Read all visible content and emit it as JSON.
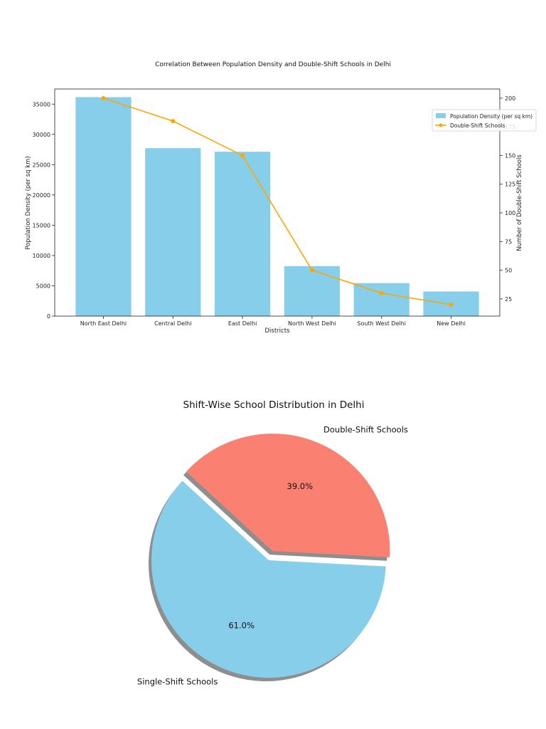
{
  "chart_data": [
    {
      "type": "bar",
      "title": "Correlation Between Population Density and Double-Shift Schools in Delhi",
      "xlabel": "Districts",
      "ylabel": "Population Density (per sq km)",
      "y2label": "Number of Double-Shift Schools",
      "categories": [
        "North East Delhi",
        "Central Delhi",
        "East Delhi",
        "North West Delhi",
        "South West Delhi",
        "New Delhi"
      ],
      "series": [
        {
          "name": "Population Density (per sq km)",
          "type": "bar",
          "axis": "left",
          "color": "#87CEEB",
          "values": [
            36155,
            27730,
            27132,
            8254,
            5446,
            4057
          ]
        },
        {
          "name": "Double-Shift Schools",
          "type": "line",
          "axis": "right",
          "color": "#FFA500",
          "values": [
            200,
            180,
            150,
            50,
            30,
            20
          ]
        }
      ],
      "ylim": [
        0,
        37500
      ],
      "y2lim": [
        10,
        208
      ],
      "yticks": [
        0,
        5000,
        10000,
        15000,
        20000,
        25000,
        30000,
        35000
      ],
      "y2ticks": [
        25,
        50,
        75,
        100,
        125,
        150,
        175,
        200
      ],
      "legend": "top-right"
    },
    {
      "type": "pie",
      "title": "Shift-Wise School Distribution in Delhi",
      "slices": [
        {
          "label": "Double-Shift Schools",
          "value": 39.0,
          "pct_text": "39.0%",
          "color": "#FA8072",
          "explode": true
        },
        {
          "label": "Single-Shift Schools",
          "value": 61.0,
          "pct_text": "61.0%",
          "color": "#87CEEB",
          "explode": false
        }
      ],
      "shadow": true
    }
  ]
}
